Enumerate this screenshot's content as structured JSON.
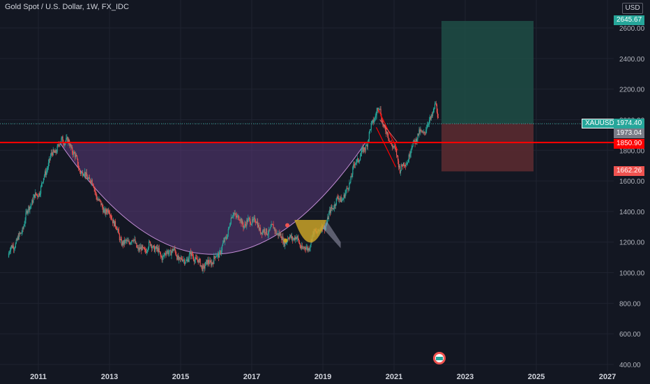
{
  "chart_title": "Gold Spot / U.S. Dollar, 1W, FX_IDC",
  "currency": "USD",
  "symbol_label": "XAUUSD",
  "colors": {
    "background": "#131722",
    "up_candle": "#26a69a",
    "down_candle": "#ef5350",
    "support_line": "#ff0000",
    "cup_fill": "#5b3a7a",
    "handle_fill": "#c9a227",
    "target_zone": "#1e4d45",
    "stop_zone": "#5a2a30"
  },
  "price_tags": {
    "target": "2645.67",
    "current": "1974.40",
    "previous": "1973.04",
    "support": "1850.90",
    "stop": "1662.26"
  },
  "chart_data": {
    "type": "candlestick",
    "x_ticks": [
      "2011",
      "2013",
      "2015",
      "2017",
      "2019",
      "2021",
      "2023",
      "2025",
      "2027"
    ],
    "y_ticks": [
      "2600.00",
      "2400.00",
      "2200.00",
      "2000.00",
      "1800.00",
      "1600.00",
      "1400.00",
      "1200.00",
      "1000.00",
      "800.00",
      "600.00",
      "400.00"
    ],
    "ylim": [
      400,
      2650
    ],
    "key_points": [
      {
        "x": "2010-03",
        "y": 1100
      },
      {
        "x": "2011-09",
        "y": 1900
      },
      {
        "x": "2013-06",
        "y": 1200
      },
      {
        "x": "2015-12",
        "y": 1050
      },
      {
        "x": "2016-07",
        "y": 1370
      },
      {
        "x": "2018-08",
        "y": 1170
      },
      {
        "x": "2019-09",
        "y": 1550
      },
      {
        "x": "2020-08",
        "y": 2070
      },
      {
        "x": "2021-03",
        "y": 1680
      },
      {
        "x": "2022-03",
        "y": 2070
      },
      {
        "x": "2022-04",
        "y": 1974.4
      }
    ],
    "support_level": 1850.9,
    "target_level": 2645.67,
    "stop_level": 1662.26,
    "entry_level": 1974.4
  }
}
